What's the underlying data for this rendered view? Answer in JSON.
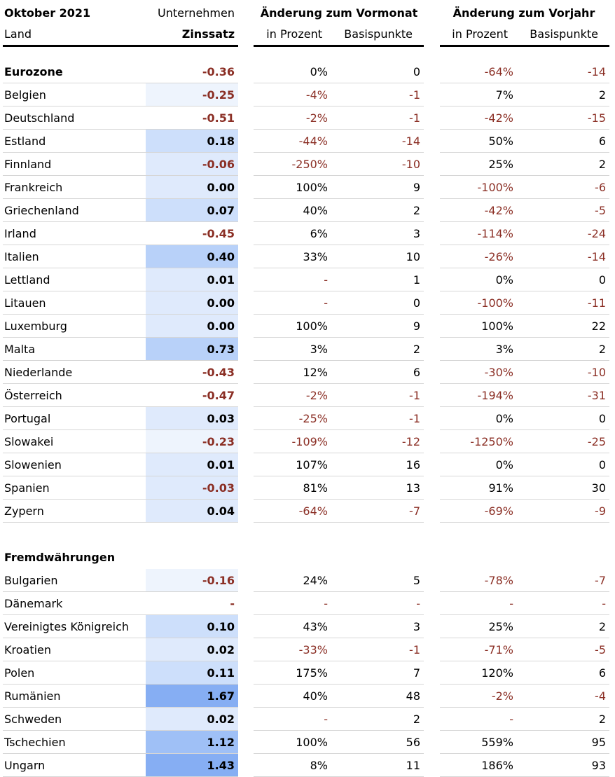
{
  "header": {
    "month": "Oktober 2021",
    "land_label": "Land",
    "company_label": "Unternehmen",
    "rate_label": "Zinssatz",
    "mom_group": "Änderung zum Vormonat",
    "yoy_group": "Änderung zum Vorjahr",
    "pct_label": "in Prozent",
    "bp_label": "Basispunkte"
  },
  "colors": {
    "negative_text": "#8b2f25",
    "rate_fill_scale": [
      "#eef4fd",
      "#dfeafc",
      "#cddffb",
      "#b8d1f9",
      "#9fc0f6",
      "#86aef3"
    ]
  },
  "sections": [
    {
      "title": "Eurozone",
      "rows": [
        {
          "land": "Eurozone",
          "rate": "-0.36",
          "mom_pct": "0%",
          "mom_bp": "0",
          "yoy_pct": "-64%",
          "yoy_bp": "-14",
          "bold": true
        },
        {
          "land": "Belgien",
          "rate": "-0.25",
          "mom_pct": "-4%",
          "mom_bp": "-1",
          "yoy_pct": "7%",
          "yoy_bp": "2"
        },
        {
          "land": "Deutschland",
          "rate": "-0.51",
          "mom_pct": "-2%",
          "mom_bp": "-1",
          "yoy_pct": "-42%",
          "yoy_bp": "-15"
        },
        {
          "land": "Estland",
          "rate": "0.18",
          "mom_pct": "-44%",
          "mom_bp": "-14",
          "yoy_pct": "50%",
          "yoy_bp": "6"
        },
        {
          "land": "Finnland",
          "rate": "-0.06",
          "mom_pct": "-250%",
          "mom_bp": "-10",
          "yoy_pct": "25%",
          "yoy_bp": "2"
        },
        {
          "land": "Frankreich",
          "rate": "0.00",
          "mom_pct": "100%",
          "mom_bp": "9",
          "yoy_pct": "-100%",
          "yoy_bp": "-6"
        },
        {
          "land": "Griechenland",
          "rate": "0.07",
          "mom_pct": "40%",
          "mom_bp": "2",
          "yoy_pct": "-42%",
          "yoy_bp": "-5"
        },
        {
          "land": "Irland",
          "rate": "-0.45",
          "mom_pct": "6%",
          "mom_bp": "3",
          "yoy_pct": "-114%",
          "yoy_bp": "-24"
        },
        {
          "land": "Italien",
          "rate": "0.40",
          "mom_pct": "33%",
          "mom_bp": "10",
          "yoy_pct": "-26%",
          "yoy_bp": "-14"
        },
        {
          "land": "Lettland",
          "rate": "0.01",
          "mom_pct": "-",
          "mom_bp": "1",
          "yoy_pct": "0%",
          "yoy_bp": "0"
        },
        {
          "land": "Litauen",
          "rate": "0.00",
          "mom_pct": "-",
          "mom_bp": "0",
          "yoy_pct": "-100%",
          "yoy_bp": "-11"
        },
        {
          "land": "Luxemburg",
          "rate": "0.00",
          "mom_pct": "100%",
          "mom_bp": "9",
          "yoy_pct": "100%",
          "yoy_bp": "22"
        },
        {
          "land": "Malta",
          "rate": "0.73",
          "mom_pct": "3%",
          "mom_bp": "2",
          "yoy_pct": "3%",
          "yoy_bp": "2"
        },
        {
          "land": "Niederlande",
          "rate": "-0.43",
          "mom_pct": "12%",
          "mom_bp": "6",
          "yoy_pct": "-30%",
          "yoy_bp": "-10"
        },
        {
          "land": "Österreich",
          "rate": "-0.47",
          "mom_pct": "-2%",
          "mom_bp": "-1",
          "yoy_pct": "-194%",
          "yoy_bp": "-31"
        },
        {
          "land": "Portugal",
          "rate": "0.03",
          "mom_pct": "-25%",
          "mom_bp": "-1",
          "yoy_pct": "0%",
          "yoy_bp": "0"
        },
        {
          "land": "Slowakei",
          "rate": "-0.23",
          "mom_pct": "-109%",
          "mom_bp": "-12",
          "yoy_pct": "-1250%",
          "yoy_bp": "-25"
        },
        {
          "land": "Slowenien",
          "rate": "0.01",
          "mom_pct": "107%",
          "mom_bp": "16",
          "yoy_pct": "0%",
          "yoy_bp": "0"
        },
        {
          "land": "Spanien",
          "rate": "-0.03",
          "mom_pct": "81%",
          "mom_bp": "13",
          "yoy_pct": "91%",
          "yoy_bp": "30"
        },
        {
          "land": "Zypern",
          "rate": "0.04",
          "mom_pct": "-64%",
          "mom_bp": "-7",
          "yoy_pct": "-69%",
          "yoy_bp": "-9"
        }
      ]
    },
    {
      "title": "Fremdwährungen",
      "rows": [
        {
          "land": "Bulgarien",
          "rate": "-0.16",
          "mom_pct": "24%",
          "mom_bp": "5",
          "yoy_pct": "-78%",
          "yoy_bp": "-7"
        },
        {
          "land": "Dänemark",
          "rate": "-",
          "mom_pct": "-",
          "mom_bp": "-",
          "yoy_pct": "-",
          "yoy_bp": "-"
        },
        {
          "land": "Vereinigtes Königreich",
          "rate": "0.10",
          "mom_pct": "43%",
          "mom_bp": "3",
          "yoy_pct": "25%",
          "yoy_bp": "2"
        },
        {
          "land": "Kroatien",
          "rate": "0.02",
          "mom_pct": "-33%",
          "mom_bp": "-1",
          "yoy_pct": "-71%",
          "yoy_bp": "-5"
        },
        {
          "land": "Polen",
          "rate": "0.11",
          "mom_pct": "175%",
          "mom_bp": "7",
          "yoy_pct": "120%",
          "yoy_bp": "6"
        },
        {
          "land": "Rumänien",
          "rate": "1.67",
          "mom_pct": "40%",
          "mom_bp": "48",
          "yoy_pct": "-2%",
          "yoy_bp": "-4"
        },
        {
          "land": "Schweden",
          "rate": "0.02",
          "mom_pct": "-",
          "mom_bp": "2",
          "yoy_pct": "-",
          "yoy_bp": "2"
        },
        {
          "land": "Tschechien",
          "rate": "1.12",
          "mom_pct": "100%",
          "mom_bp": "56",
          "yoy_pct": "559%",
          "yoy_bp": "95"
        },
        {
          "land": "Ungarn",
          "rate": "1.43",
          "mom_pct": "8%",
          "mom_bp": "11",
          "yoy_pct": "186%",
          "yoy_bp": "93"
        }
      ]
    }
  ]
}
